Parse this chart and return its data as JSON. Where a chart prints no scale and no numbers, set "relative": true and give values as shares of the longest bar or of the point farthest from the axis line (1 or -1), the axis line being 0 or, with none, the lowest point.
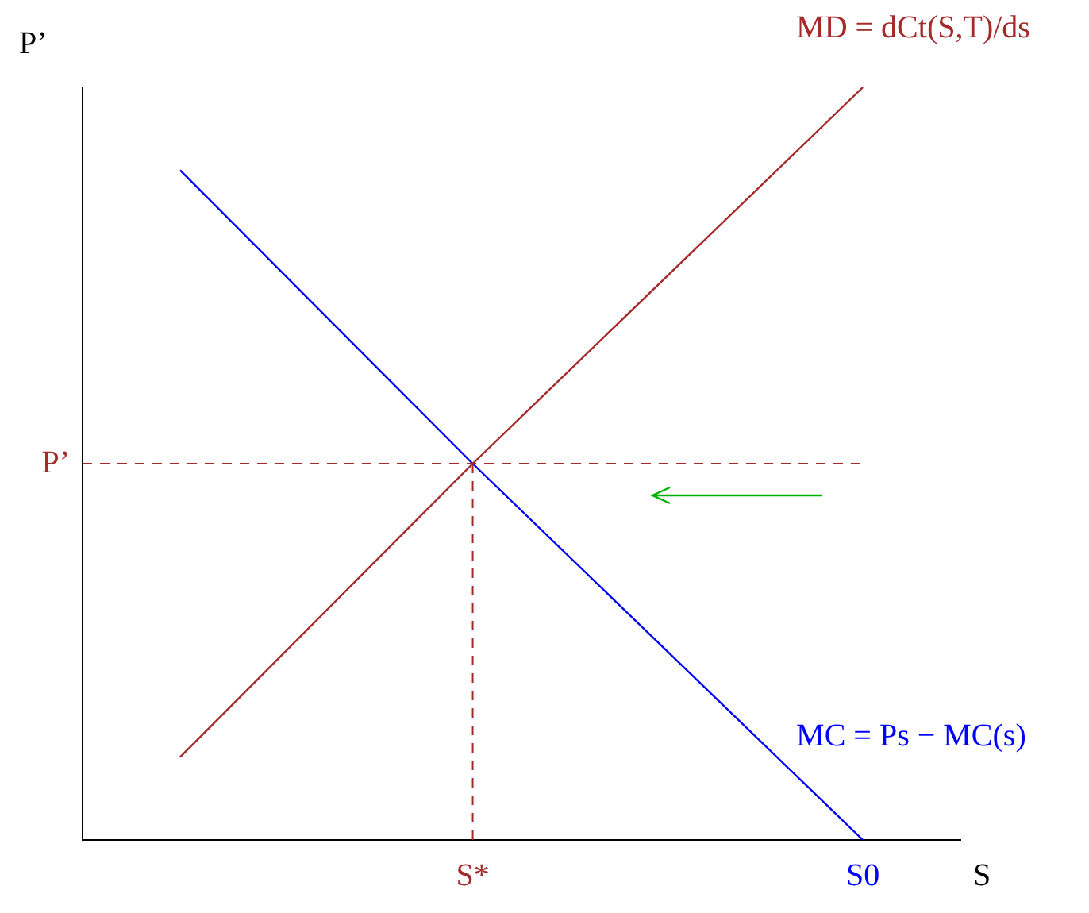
{
  "chart_data": {
    "type": "line",
    "relative": true,
    "ylabel": "P’",
    "xlabel": "S",
    "tick_labels": "x",
    "legend": false,
    "grid": false,
    "marker": "none",
    "line_style": "solid",
    "categories": [
      null,
      null,
      null,
      null,
      "S*",
      null,
      null,
      null,
      "S0",
      null
    ],
    "series": [
      {
        "name": "MD = dCt(S,T)/ds",
        "color": "#a52a2a",
        "values": [
          null,
          0.11,
          null,
          null,
          0.5,
          null,
          null,
          null,
          1,
          null
        ]
      },
      {
        "name": "MC = Ps − MC(s)",
        "color": "#0000ff",
        "values": [
          null,
          0.89,
          null,
          null,
          0.5,
          null,
          null,
          null,
          0,
          null
        ]
      }
    ],
    "ref_lines": [
      {
        "axis": "y",
        "value": 0.5,
        "label": "P’",
        "color": "#a52a2a",
        "line_style": "dashed"
      },
      {
        "axis": "x",
        "value": "S*",
        "color": "#a52a2a",
        "line_style": "dashed"
      }
    ]
  }
}
